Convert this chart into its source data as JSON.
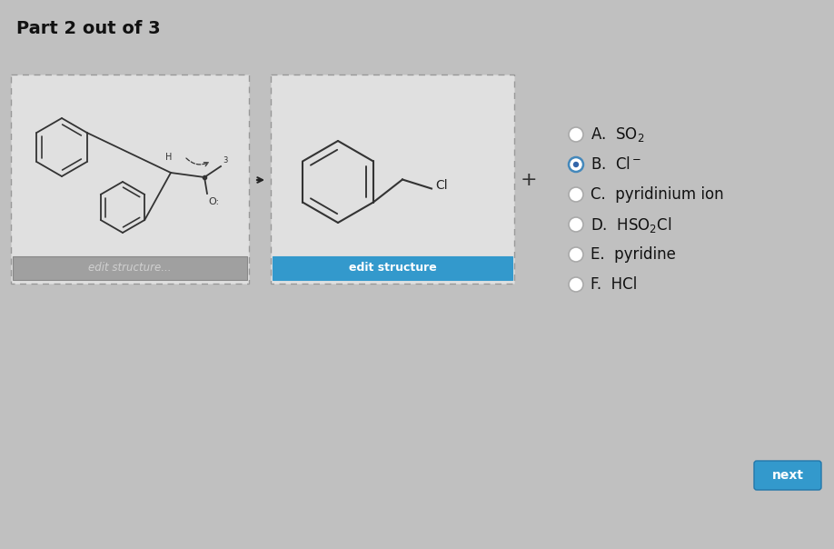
{
  "background_color": "#c0c0c0",
  "title": "Part 2 out of 3",
  "title_fontsize": 14,
  "title_color": "#111111",
  "options": [
    {
      "label": "A.",
      "chemical": "SO$_2$",
      "selected": false
    },
    {
      "label": "B.",
      "chemical": "Cl$^-$",
      "selected": true
    },
    {
      "label": "C.",
      "chemical": "pyridinium ion",
      "selected": false
    },
    {
      "label": "D.",
      "chemical": "HSO$_2$Cl",
      "selected": false
    },
    {
      "label": "E.",
      "chemical": "pyridine",
      "selected": false
    },
    {
      "label": "F.",
      "chemical": "HCl",
      "selected": false
    }
  ],
  "edit_btn_color": "#3399cc",
  "edit_btn_text": "edit structure",
  "edit_btn_text_color": "#ffffff",
  "edit_btn2_color": "#a0a0a0",
  "edit_btn2_text": "edit structure...",
  "edit_btn2_text_color": "#d0d0d0",
  "next_btn_color": "#3399cc",
  "next_btn_text": "next",
  "next_btn_text_color": "#ffffff",
  "box1_bg": "#e0e0e0",
  "box2_bg": "#e0e0e0",
  "box_border_color": "#999999",
  "radio_dot_color": "#333333",
  "mol_line_color": "#333333"
}
